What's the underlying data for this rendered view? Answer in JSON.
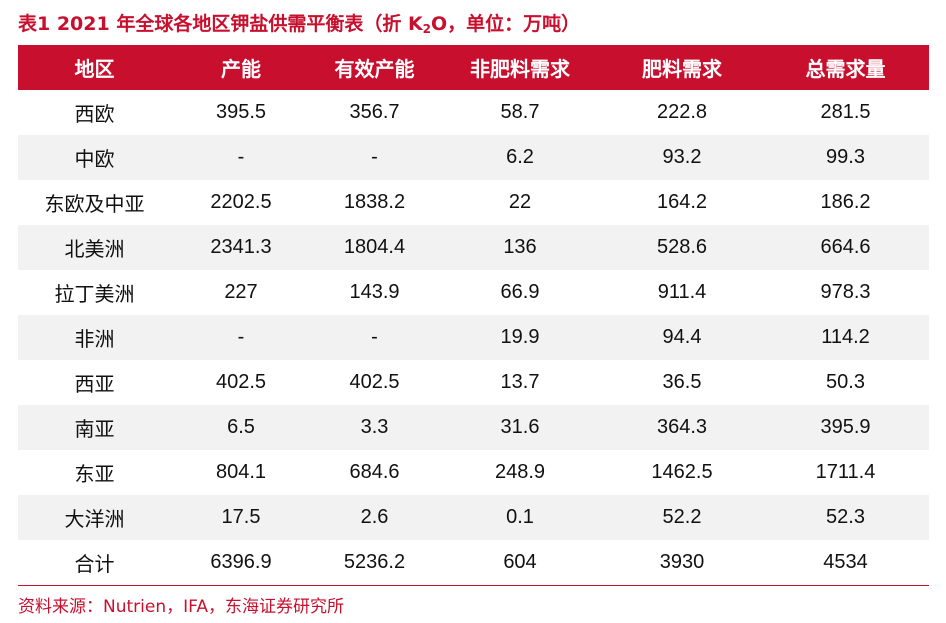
{
  "title": {
    "prefix": "表1  2021 年全球各地区钾盐供需平衡表（折 K",
    "subscript": "2",
    "suffix": "O，单位：万吨）"
  },
  "table": {
    "headers": [
      "地区",
      "产能",
      "有效产能",
      "非肥料需求",
      "肥料需求",
      "总需求量"
    ],
    "rows": [
      [
        "西欧",
        "395.5",
        "356.7",
        "58.7",
        "222.8",
        "281.5"
      ],
      [
        "中欧",
        "-",
        "-",
        "6.2",
        "93.2",
        "99.3"
      ],
      [
        "东欧及中亚",
        "2202.5",
        "1838.2",
        "22",
        "164.2",
        "186.2"
      ],
      [
        "北美洲",
        "2341.3",
        "1804.4",
        "136",
        "528.6",
        "664.6"
      ],
      [
        "拉丁美洲",
        "227",
        "143.9",
        "66.9",
        "911.4",
        "978.3"
      ],
      [
        "非洲",
        "-",
        "-",
        "19.9",
        "94.4",
        "114.2"
      ],
      [
        "西亚",
        "402.5",
        "402.5",
        "13.7",
        "36.5",
        "50.3"
      ],
      [
        "南亚",
        "6.5",
        "3.3",
        "31.6",
        "364.3",
        "395.9"
      ],
      [
        "东亚",
        "804.1",
        "684.6",
        "248.9",
        "1462.5",
        "1711.4"
      ],
      [
        "大洋洲",
        "17.5",
        "2.6",
        "0.1",
        "52.2",
        "52.3"
      ],
      [
        "合计",
        "6396.9",
        "5236.2",
        "604",
        "3930",
        "4534"
      ]
    ]
  },
  "source": "资料来源：Nutrien，IFA，东海证券研究所",
  "colors": {
    "accent": "#c8102e",
    "row_stripe": "#f2f2f2"
  }
}
